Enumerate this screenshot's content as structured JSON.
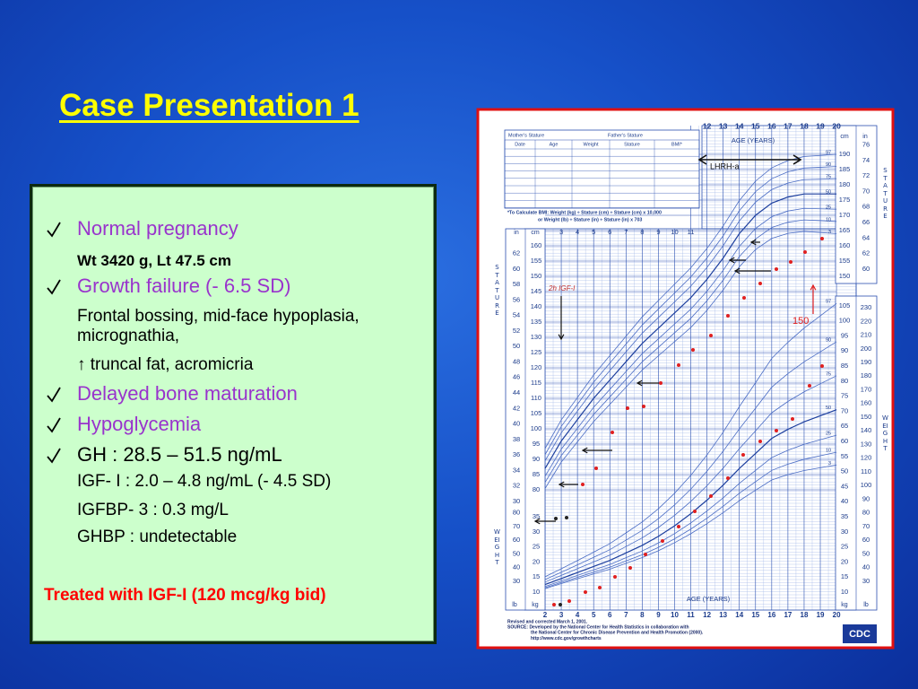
{
  "title": "Case Presentation 1",
  "bullets": [
    {
      "text": "Normal pregnancy",
      "color": "#9933cc",
      "sub": [
        "Wt  3420 g, Lt  47.5 cm"
      ]
    },
    {
      "text": "Growth failure (- 6.5 SD)",
      "color": "#9933cc",
      "sub": [
        "Frontal bossing, mid-face hypoplasia, micrognathia,",
        "↑ truncal fat, acromicria"
      ]
    },
    {
      "text": "Delayed bone maturation",
      "color": "#9933cc",
      "sub": []
    },
    {
      "text": "Hypoglycemia",
      "color": "#9933cc",
      "sub": []
    },
    {
      "text": "GH : 28.5 – 51.5 ng/mL",
      "color": "#000000",
      "sub": [
        "IGF- I : 2.0 – 4.8 ng/mL (- 4.5 SD)",
        "IGFBP- 3 : 0.3 mg/L",
        "GHBP : undetectable"
      ]
    }
  ],
  "treatment": "Treated with IGF-I (120 mcg/kg bid)",
  "growth_chart": {
    "mother_stature": "Mother's Stature",
    "father_stature": "Father's Stature",
    "table_columns": [
      "Date",
      "Age",
      "Weight",
      "Stature",
      "BMI*"
    ],
    "bmi_note": [
      "*To Calculate BMI: Weight (kg) ÷ Stature (cm) ÷ Stature (cm) x 10,000",
      "or Weight (lb) ÷ Stature (in) ÷ Stature (in) x 703"
    ],
    "age_label": "AGE (YEARS)",
    "unit_cm": "cm",
    "unit_in": "in",
    "unit_kg": "kg",
    "unit_lb": "lb",
    "stature_word": "STATURE",
    "weight_word": "WEIGHT",
    "top_ages": [
      12,
      13,
      14,
      15,
      16,
      17,
      18,
      19,
      20
    ],
    "mid_ages": [
      3,
      4,
      5,
      6,
      7,
      8,
      9,
      10,
      11
    ],
    "bottom_ages": [
      2,
      3,
      4,
      5,
      6,
      7,
      8,
      9,
      10,
      11,
      12,
      13,
      14,
      15,
      16,
      17,
      18,
      19,
      20
    ],
    "right_stature_cm": [
      150,
      155,
      160,
      165,
      170,
      175,
      180,
      185,
      190
    ],
    "right_stature_in": [
      60,
      62,
      64,
      66,
      68,
      70,
      72,
      74,
      76
    ],
    "left_stature_cm": [
      80,
      85,
      90,
      95,
      100,
      105,
      110,
      115,
      120,
      125,
      130,
      135,
      140,
      145,
      150,
      155,
      160
    ],
    "left_stature_in": [
      30,
      32,
      34,
      36,
      38,
      40,
      42,
      44,
      46,
      48,
      50,
      52,
      54,
      56,
      58,
      60,
      62
    ],
    "left_weight_kg": [
      10,
      15,
      20,
      25,
      30,
      35
    ],
    "left_weight_lb": [
      30,
      40,
      50,
      60,
      70,
      80
    ],
    "right_weight_kg": [
      10,
      15,
      20,
      25,
      30,
      35,
      40,
      45,
      50,
      55,
      60,
      65,
      70,
      75,
      80,
      85,
      90,
      95,
      100,
      105
    ],
    "right_weight_lb": [
      30,
      40,
      50,
      60,
      70,
      80,
      90,
      100,
      110,
      120,
      130,
      140,
      150,
      160,
      170,
      180,
      190,
      200,
      210,
      220,
      230
    ],
    "percentiles": [
      97,
      90,
      75,
      50,
      25,
      10,
      3
    ],
    "handwritten": {
      "lhrh": "LHRH-a",
      "height": "150",
      "igf": "2h IGF-I"
    },
    "footer": [
      "Revised and corrected March 1, 2001.",
      "SOURCE: Developed by the National Center for Health Statistics in collaboration with",
      "the National Center for Chronic Disease Prevention and Health Promotion (2000).",
      "http://www.cdc.gov/growthcharts"
    ],
    "logo": "CDC"
  }
}
